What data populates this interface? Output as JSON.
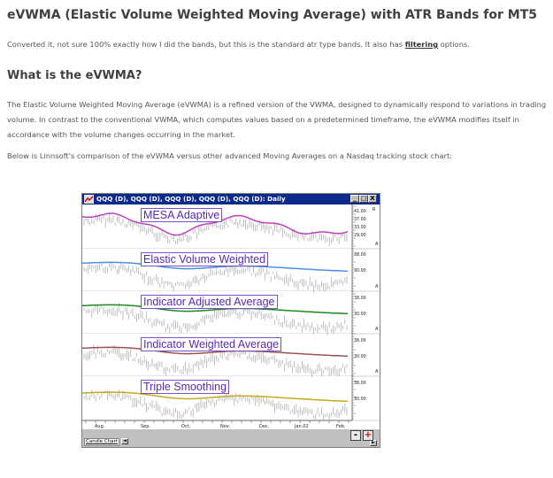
{
  "article": {
    "title": "eVWMA (Elastic Volume Weighted Moving Average) with ATR Bands for MT5",
    "intro_before": "Converted it, not sure 100% exactly how I did the bands, but this is the standard atr type bands. It also has ",
    "intro_link": "filtering",
    "intro_after": " options.",
    "heading": "What is the eVWMA?",
    "paragraph": "The Elastic Volume Weighted Moving Average (eVWMA) is a refined version of the VWMA, designed to dynamically respond to variations in trading volume. In contrast to the conventional VWMA, which computes values based on a predetermined timeframe, the eVWMA modifies itself in accordance with the volume changes occurring in the market.",
    "paragraph2": "Below is Linnsoft's comparison of the eVWMA versus other advanced Moving Averages on a Nasdaq tracking stock chart:"
  },
  "chart_window": {
    "title": "QQQ (D), QQQ (D), QQQ (D), QQQ (D), QQQ (D): Daily",
    "minimize_label": "_",
    "maximize_label": "□",
    "close_label": "X",
    "r_flag": "R",
    "a_flag": "A",
    "panels": [
      {
        "label": "MESA Adaptive",
        "color": "#c040c0",
        "ticks": [
          "41.00",
          "37.00",
          "33.00",
          "29.00"
        ]
      },
      {
        "label": "Elastic Volume Weighted",
        "color": "#4a90e2",
        "ticks": [
          "38.00",
          "30.00"
        ]
      },
      {
        "label": "Indicator Adjusted Average",
        "color": "#1a8a1a",
        "ticks": [
          "38.00",
          "30.00"
        ]
      },
      {
        "label": "Indicator Weighted Average",
        "color": "#a05050",
        "ticks": [
          "38.00",
          "30.00"
        ]
      },
      {
        "label": "Triple Smoothing",
        "color": "#c8a820",
        "ticks": [
          "38.00",
          "30.00"
        ]
      }
    ],
    "x_labels": [
      "Aug.",
      "Sep.",
      "Oct.",
      "Nov.",
      "Dec.",
      "Jan.02",
      "Feb."
    ],
    "candle_tab": "Candle Chart",
    "zoom_out_label": "-",
    "zoom_in_label": "+",
    "colors": {
      "titlebar": "#0a2a8c",
      "label_text": "#5a28b4",
      "price": "#b8b8b8"
    }
  }
}
